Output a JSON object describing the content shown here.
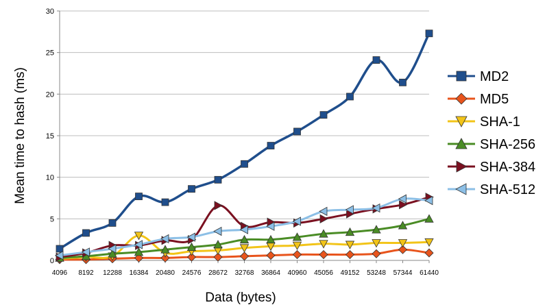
{
  "chart_data": {
    "type": "line",
    "xlabel": "Data (bytes)",
    "ylabel": "Mean time to hash (ms)",
    "ylim": [
      0,
      30
    ],
    "yticks": [
      0,
      5,
      10,
      15,
      20,
      25,
      30
    ],
    "grid": "horizontal",
    "legend": "right",
    "categories": [
      "4096",
      "8192",
      "12288",
      "16384",
      "20480",
      "24576",
      "28672",
      "32768",
      "36864",
      "40960",
      "45056",
      "49152",
      "53248",
      "57344",
      "61440"
    ],
    "series": [
      {
        "name": "MD2",
        "color": "#1f4e8c",
        "marker": "square",
        "values": [
          1.4,
          3.3,
          4.5,
          7.7,
          7.0,
          8.6,
          9.7,
          11.6,
          13.8,
          15.5,
          17.5,
          19.7,
          24.1,
          21.4,
          27.3
        ]
      },
      {
        "name": "MD5",
        "color": "#e8541c",
        "marker": "diamond",
        "values": [
          0.1,
          0.1,
          0.2,
          0.3,
          0.3,
          0.4,
          0.4,
          0.5,
          0.6,
          0.7,
          0.7,
          0.7,
          0.8,
          1.3,
          0.9
        ]
      },
      {
        "name": "SHA-1",
        "color": "#f2c418",
        "marker": "triangle-down",
        "values": [
          0.2,
          0.4,
          0.5,
          3.0,
          0.9,
          1.1,
          1.2,
          1.5,
          1.7,
          1.8,
          2.0,
          1.9,
          2.1,
          2.1,
          2.2
        ]
      },
      {
        "name": "SHA-256",
        "color": "#4a8c25",
        "marker": "triangle-up",
        "values": [
          0.3,
          0.5,
          0.8,
          1.0,
          1.3,
          1.6,
          1.9,
          2.5,
          2.5,
          2.8,
          3.2,
          3.4,
          3.7,
          4.2,
          5.0
        ]
      },
      {
        "name": "SHA-384",
        "color": "#7a1020",
        "marker": "triangle-right",
        "values": [
          0.4,
          0.9,
          1.8,
          1.8,
          2.4,
          2.5,
          6.6,
          4.1,
          4.6,
          4.5,
          5.0,
          5.6,
          6.2,
          6.7,
          7.6
        ]
      },
      {
        "name": "SHA-512",
        "color": "#8cbfe6",
        "marker": "triangle-left",
        "values": [
          0.6,
          1.0,
          1.4,
          1.9,
          2.6,
          2.8,
          3.5,
          3.7,
          4.1,
          4.7,
          5.9,
          6.1,
          6.3,
          7.4,
          7.2
        ]
      }
    ]
  }
}
